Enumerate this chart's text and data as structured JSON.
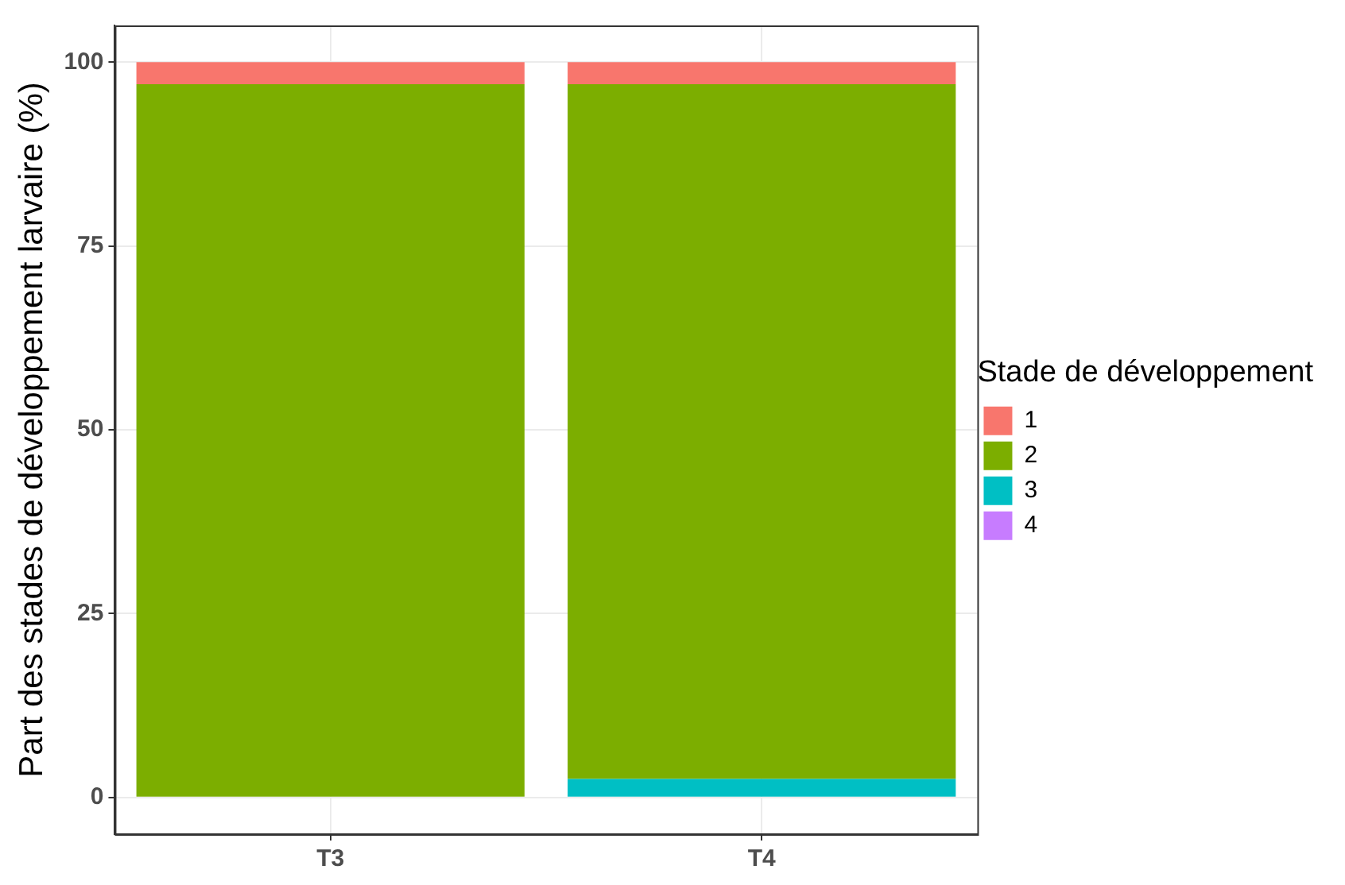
{
  "chart_data": {
    "type": "bar",
    "stacked": true,
    "ylabel": "Part des stades de développement larvaire (%)",
    "legend_title": "Stade de développement",
    "legend": "right",
    "grid": true,
    "categories": [
      "T3",
      "T4"
    ],
    "ylim": [
      0,
      100
    ],
    "yticks": [
      0,
      25,
      50,
      75,
      100
    ],
    "series": [
      {
        "name": "4",
        "color": "#c77cff",
        "values": [
          0,
          0
        ]
      },
      {
        "name": "3",
        "color": "#00bfc4",
        "values": [
          0,
          2.5
        ]
      },
      {
        "name": "2",
        "color": "#7cae00",
        "values": [
          97,
          94.5
        ]
      },
      {
        "name": "1",
        "color": "#f8766d",
        "values": [
          3,
          3
        ]
      }
    ]
  }
}
